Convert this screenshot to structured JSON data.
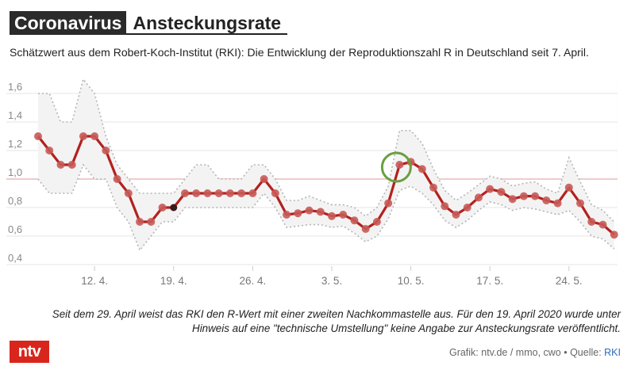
{
  "header": {
    "title_main": "Coronavirus",
    "title_sub": "Ansteckungsrate",
    "subtitle": "Schätzwert aus dem Robert-Koch-Institut (RKI): Die Entwicklung der Reproduktionszahl R in Deutschland seit 7. April."
  },
  "chart_data": {
    "type": "line",
    "title": "Ansteckungsrate",
    "xlabel": "",
    "ylabel": "",
    "ylim": [
      0.4,
      1.7
    ],
    "yticks": [
      "1,6",
      "1,4",
      "1,2",
      "1,0",
      "0,8",
      "0,6",
      "0,4"
    ],
    "ytick_values": [
      1.6,
      1.4,
      1.2,
      1.0,
      0.8,
      0.6,
      0.4
    ],
    "reference_line": 1.0,
    "xlim": [
      0,
      51.3
    ],
    "xticks": [
      {
        "day": 5,
        "label": "12. 4."
      },
      {
        "day": 12,
        "label": "19. 4."
      },
      {
        "day": 19,
        "label": "26. 4."
      },
      {
        "day": 26,
        "label": "3. 5."
      },
      {
        "day": 33,
        "label": "10. 5."
      },
      {
        "day": 40,
        "label": "17. 5."
      },
      {
        "day": 47,
        "label": "24. 5."
      }
    ],
    "series": [
      {
        "name": "R-Wert",
        "start": "7. April",
        "values": [
          1.3,
          1.2,
          1.1,
          1.1,
          1.3,
          1.3,
          1.2,
          1.0,
          0.9,
          0.7,
          0.7,
          0.8,
          0.8,
          0.9,
          0.9,
          0.9,
          0.9,
          0.9,
          0.9,
          0.9,
          1.0,
          0.9,
          0.75,
          0.76,
          0.78,
          0.77,
          0.74,
          0.75,
          0.71,
          0.65,
          0.7,
          0.83,
          1.1,
          1.12,
          1.07,
          0.94,
          0.81,
          0.75,
          0.8,
          0.87,
          0.93,
          0.91,
          0.86,
          0.88,
          0.88,
          0.85,
          0.83,
          0.94,
          0.83,
          0.7,
          0.68,
          0.61
        ]
      },
      {
        "name": "obere Grenze",
        "values": [
          1.6,
          1.6,
          1.4,
          1.4,
          1.7,
          1.6,
          1.3,
          1.1,
          1.0,
          0.9,
          0.9,
          0.9,
          0.9,
          1.0,
          1.1,
          1.1,
          1.0,
          1.0,
          1.0,
          1.1,
          1.1,
          1.0,
          0.85,
          0.85,
          0.88,
          0.85,
          0.82,
          0.82,
          0.8,
          0.74,
          0.8,
          0.95,
          1.34,
          1.34,
          1.25,
          1.07,
          0.92,
          0.85,
          0.9,
          0.96,
          1.02,
          1.0,
          0.95,
          0.97,
          0.98,
          0.93,
          0.9,
          1.15,
          0.98,
          0.82,
          0.78,
          0.7
        ]
      },
      {
        "name": "untere Grenze",
        "values": [
          1.0,
          0.9,
          0.9,
          0.9,
          1.1,
          1.0,
          1.0,
          0.8,
          0.7,
          0.5,
          0.6,
          0.7,
          0.7,
          0.8,
          0.8,
          0.8,
          0.8,
          0.8,
          0.8,
          0.8,
          0.9,
          0.8,
          0.66,
          0.67,
          0.68,
          0.68,
          0.66,
          0.67,
          0.62,
          0.56,
          0.6,
          0.72,
          0.92,
          0.95,
          0.9,
          0.82,
          0.71,
          0.66,
          0.71,
          0.78,
          0.84,
          0.82,
          0.78,
          0.8,
          0.79,
          0.77,
          0.75,
          0.78,
          0.7,
          0.6,
          0.58,
          0.51
        ]
      }
    ],
    "highlight_dark_point_day": 12,
    "highlight_circle_day": 32
  },
  "note": "Seit dem 29. April weist das RKI den R-Wert mit einer zweiten Nachkommastelle aus. Für den 19. April 2020 wurde unter Hinweis auf eine \"technische Umstellung\" keine Angabe zur Ansteckungsrate veröffentlicht.",
  "footer": {
    "logo": "ntv",
    "credit_prefix": "Grafik: ntv.de / mmo, cwo • Quelle: ",
    "credit_source": "RKI"
  },
  "colors": {
    "line": "#b3211e",
    "dot": "#c75a56",
    "band": "#f3f3f3",
    "bound": "#b5b5b5",
    "highlight_circle": "#6a9e3f",
    "reference": "#e8bcbc",
    "today_band": "#fbeef0"
  }
}
